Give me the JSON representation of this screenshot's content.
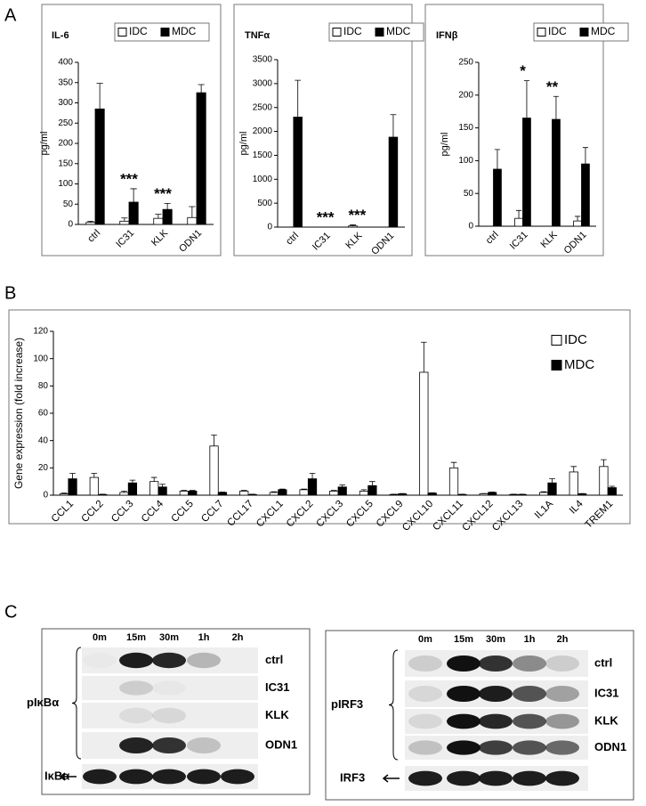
{
  "panels": [
    "A",
    "B",
    "C"
  ],
  "chart_data": [
    {
      "type": "bar",
      "title": "IL-6",
      "ylabel": "pg/ml",
      "categories": [
        "ctrl",
        "IC31",
        "KLK",
        "ODN1"
      ],
      "series": [
        {
          "name": "IDC",
          "color": "#ffffff",
          "values": [
            5,
            8,
            15,
            17
          ],
          "errors": [
            3,
            8,
            10,
            27
          ]
        },
        {
          "name": "MDC",
          "color": "#000000",
          "values": [
            285,
            55,
            37,
            325
          ],
          "errors": [
            63,
            33,
            15,
            20
          ]
        }
      ],
      "annotations": [
        null,
        "***",
        "***",
        null
      ],
      "ylim": [
        0,
        400
      ],
      "yticks": [
        0,
        50,
        100,
        150,
        200,
        250,
        300,
        350,
        400
      ]
    },
    {
      "type": "bar",
      "title": "TNFα",
      "ylabel": "pg/ml",
      "categories": [
        "ctrl",
        "IC31",
        "KLK",
        "ODN1"
      ],
      "series": [
        {
          "name": "IDC",
          "color": "#ffffff",
          "values": [
            0,
            0,
            25,
            0
          ],
          "errors": [
            0,
            0,
            20,
            0
          ]
        },
        {
          "name": "MDC",
          "color": "#000000",
          "values": [
            2300,
            0,
            0,
            1880
          ],
          "errors": [
            770,
            0,
            0,
            470
          ]
        }
      ],
      "annotations": [
        null,
        "***",
        "***",
        null
      ],
      "ylim": [
        0,
        3500
      ],
      "yticks": [
        0,
        500,
        1000,
        1500,
        2000,
        2500,
        3000,
        3500
      ]
    },
    {
      "type": "bar",
      "title": "IFNβ",
      "ylabel": "pg/ml",
      "categories": [
        "ctrl",
        "IC31",
        "KLK",
        "ODN1"
      ],
      "series": [
        {
          "name": "IDC",
          "color": "#ffffff",
          "values": [
            0,
            12,
            0,
            8
          ],
          "errors": [
            0,
            12,
            0,
            7
          ]
        },
        {
          "name": "MDC",
          "color": "#000000",
          "values": [
            87,
            165,
            163,
            95
          ],
          "errors": [
            30,
            57,
            35,
            25
          ]
        }
      ],
      "annotations": [
        null,
        "*",
        "**",
        null
      ],
      "ylim": [
        0,
        250
      ],
      "yticks": [
        0,
        50,
        100,
        150,
        200,
        250
      ]
    },
    {
      "type": "bar",
      "ylabel": "Gene expression (fold increase)",
      "categories": [
        "CCL1",
        "CCL2",
        "CCL3",
        "CCL4",
        "CCL5",
        "CCL7",
        "CCL17",
        "CXCL1",
        "CXCL2",
        "CXCL3",
        "CXCL5",
        "CXCL9",
        "CXCL10",
        "CXCL11",
        "CXCL12",
        "CXCL13",
        "IL1A",
        "IL4",
        "TREM1"
      ],
      "series": [
        {
          "name": "IDC",
          "color": "#ffffff",
          "values": [
            1,
            13,
            2,
            10,
            3,
            36,
            3,
            2,
            4,
            3,
            3,
            0.5,
            90,
            20,
            1,
            0.5,
            2,
            17,
            21
          ],
          "errors": [
            0.5,
            3,
            1,
            3,
            0.5,
            8,
            0.5,
            0.5,
            0.5,
            0.5,
            1,
            0.2,
            22,
            4,
            0.2,
            0.2,
            0.5,
            4,
            5
          ]
        },
        {
          "name": "MDC",
          "color": "#000000",
          "values": [
            12,
            0.5,
            9,
            6,
            3,
            2,
            0.5,
            4,
            12,
            6,
            7,
            1,
            1.5,
            0.5,
            2,
            0.5,
            9,
            1,
            5.5
          ],
          "errors": [
            4,
            0.2,
            2,
            2,
            0.5,
            0.3,
            0.2,
            0.5,
            4,
            1.5,
            3,
            0.2,
            0.3,
            0.2,
            0.3,
            0.2,
            3,
            0.2,
            1
          ]
        }
      ],
      "ylim": [
        0,
        120
      ],
      "yticks": [
        0,
        20,
        40,
        60,
        80,
        100,
        120
      ]
    }
  ],
  "blots": [
    {
      "times": [
        "0m",
        "15m",
        "30m",
        "1h",
        "2h"
      ],
      "rows": [
        "ctrl",
        "IC31",
        "KLK",
        "ODN1"
      ],
      "group": "pIκBα",
      "loading": "IκBα"
    },
    {
      "times": [
        "0m",
        "15m",
        "30m",
        "1h",
        "2h"
      ],
      "rows": [
        "ctrl",
        "IC31",
        "KLK",
        "ODN1"
      ],
      "group": "pIRF3",
      "loading": "IRF3"
    }
  ]
}
